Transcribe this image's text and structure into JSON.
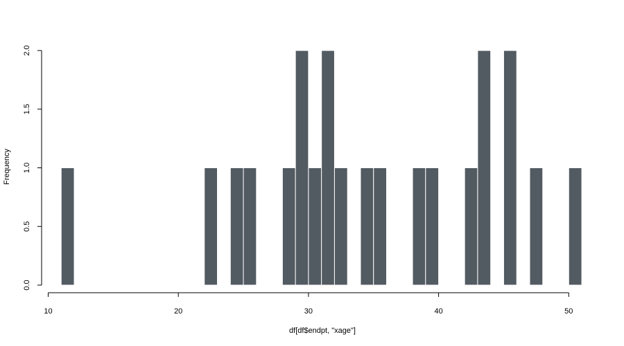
{
  "chart_data": {
    "type": "bar",
    "title": "",
    "xlabel": "df[df$endpt, \"xage\"]",
    "ylabel": "Frequency",
    "xlim": [
      10,
      51
    ],
    "ylim": [
      0,
      2
    ],
    "x_ticks": [
      10,
      20,
      30,
      40,
      50
    ],
    "y_ticks": [
      "0.0",
      "0.5",
      "1.0",
      "1.5",
      "2.0"
    ],
    "bins": [
      {
        "x0": 11,
        "x1": 12,
        "count": 1
      },
      {
        "x0": 22,
        "x1": 23,
        "count": 1
      },
      {
        "x0": 24,
        "x1": 25,
        "count": 1
      },
      {
        "x0": 25,
        "x1": 26,
        "count": 1
      },
      {
        "x0": 28,
        "x1": 29,
        "count": 1
      },
      {
        "x0": 29,
        "x1": 30,
        "count": 2
      },
      {
        "x0": 30,
        "x1": 31,
        "count": 1
      },
      {
        "x0": 31,
        "x1": 32,
        "count": 2
      },
      {
        "x0": 32,
        "x1": 33,
        "count": 1
      },
      {
        "x0": 34,
        "x1": 35,
        "count": 1
      },
      {
        "x0": 35,
        "x1": 36,
        "count": 1
      },
      {
        "x0": 38,
        "x1": 39,
        "count": 1
      },
      {
        "x0": 39,
        "x1": 40,
        "count": 1
      },
      {
        "x0": 42,
        "x1": 43,
        "count": 1
      },
      {
        "x0": 43,
        "x1": 44,
        "count": 2
      },
      {
        "x0": 45,
        "x1": 46,
        "count": 2
      },
      {
        "x0": 47,
        "x1": 48,
        "count": 1
      },
      {
        "x0": 50,
        "x1": 51,
        "count": 1
      }
    ],
    "bar_color": "#525a62",
    "bar_border_color": "#ffffff",
    "grid": false,
    "legend": "none"
  }
}
